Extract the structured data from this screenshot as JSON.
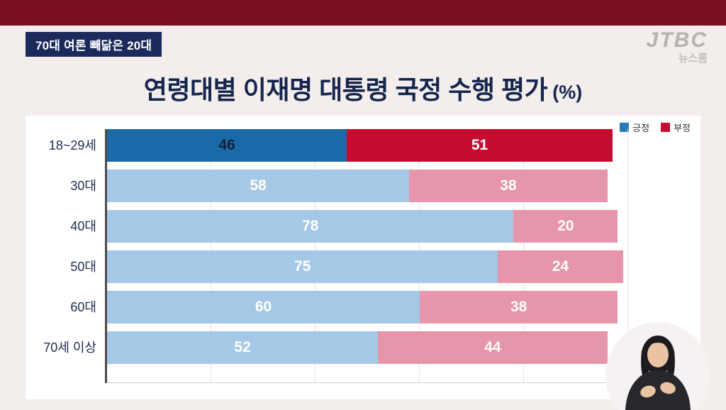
{
  "header": {
    "badge": "70대 여론 빼닮은 20대",
    "title": "연령대별 이재명 대통령 국정 수행 평가",
    "title_suffix": "(%)"
  },
  "branding": {
    "logo": "JTBC",
    "program": "뉴스룸"
  },
  "legend": [
    {
      "label": "긍정",
      "color": "#2b7ab5"
    },
    {
      "label": "부정",
      "color": "#c60b31"
    }
  ],
  "chart_data": {
    "type": "bar",
    "orientation": "horizontal",
    "stacked": true,
    "unit": "%",
    "title": "연령대별 이재명 대통령 국정 수행 평가 (%)",
    "categories": [
      "18~29세",
      "30대",
      "40대",
      "50대",
      "60대",
      "70세 이상"
    ],
    "series": [
      {
        "name": "긍정",
        "values": [
          46,
          58,
          78,
          75,
          60,
          52
        ]
      },
      {
        "name": "부정",
        "values": [
          51,
          38,
          20,
          24,
          38,
          44
        ]
      }
    ],
    "highlight_index": 0,
    "highlight_category": "18~29세",
    "xlim": [
      0,
      100
    ],
    "gridlines": true,
    "legend_position": "top-right"
  },
  "colors": {
    "top_bar": "#7a0f23",
    "page_bg": "#f3edec",
    "badge_bg": "#1b2a5c",
    "title": "#15254c",
    "label": "#1e2c50",
    "axis": "#4a4a4a",
    "grid": "#e3e3e3",
    "logo": "#b8b1b1",
    "positive_highlight": "#1a6aa8",
    "negative_highlight": "#c60b31",
    "positive_muted": "#a6c8e7",
    "negative_muted": "#e795aa",
    "pos_hl_text": "#0f2040",
    "bar_text": "#ffffff"
  }
}
